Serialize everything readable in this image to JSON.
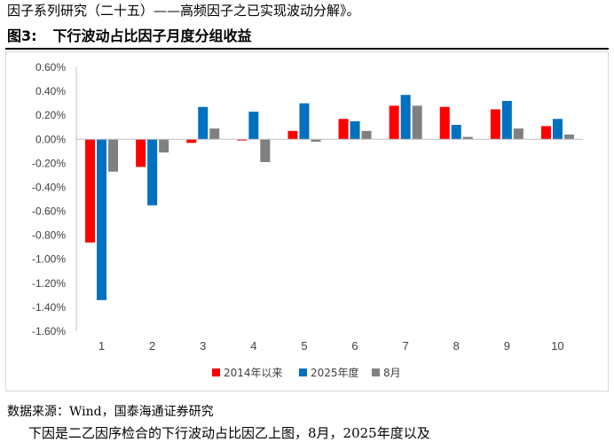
{
  "header": {
    "top_text": "因子系列研究（二十五）——高频因子之已实现波动分解》。",
    "figure_number": "图3:",
    "figure_title": "下行波动占比因子月度分组收益"
  },
  "source": "数据来源：Wind，国泰海通证券研究",
  "bottom_partial_text": "下因是二乙因序检合的下行波动占比因乙上图，8月，2025年度以及",
  "colors": {
    "series1": "#ff0000",
    "series2": "#0070c0",
    "series3": "#808080"
  },
  "chart_data": {
    "type": "bar",
    "categories": [
      "1",
      "2",
      "3",
      "4",
      "5",
      "6",
      "7",
      "8",
      "9",
      "10"
    ],
    "series": [
      {
        "name": "2014年以来",
        "values": [
          -0.86,
          -0.23,
          -0.03,
          -0.01,
          0.07,
          0.17,
          0.28,
          0.27,
          0.25,
          0.11
        ]
      },
      {
        "name": "2025年度",
        "values": [
          -1.34,
          -0.55,
          0.27,
          0.23,
          0.3,
          0.15,
          0.37,
          0.12,
          0.32,
          0.17
        ]
      },
      {
        "name": "8月",
        "values": [
          -0.27,
          -0.11,
          0.09,
          -0.19,
          -0.02,
          0.07,
          0.28,
          0.02,
          0.09,
          0.04
        ]
      }
    ],
    "y_ticks": [
      "0.60%",
      "0.40%",
      "0.20%",
      "0.00%",
      "-0.20%",
      "-0.40%",
      "-0.60%",
      "-0.80%",
      "-1.00%",
      "-1.20%",
      "-1.40%",
      "-1.60%"
    ],
    "ylim": [
      -1.6,
      0.6
    ],
    "y_unit": "%",
    "grid": false,
    "legend_position": "bottom"
  }
}
